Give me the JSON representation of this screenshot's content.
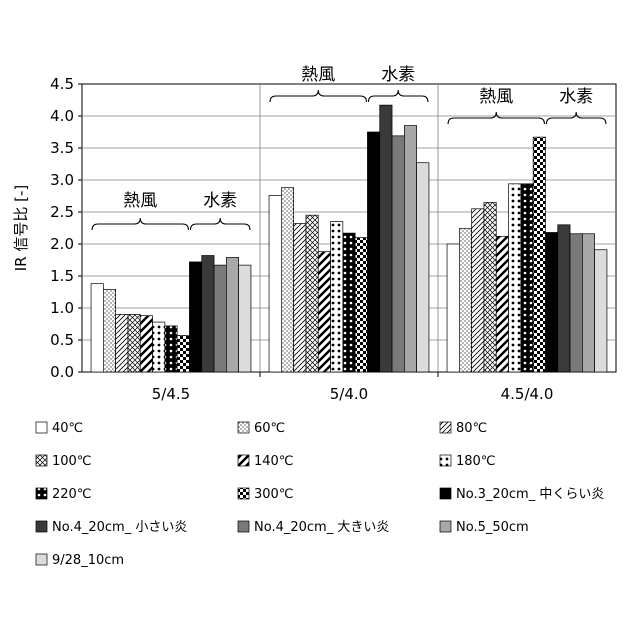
{
  "chart_data": {
    "type": "bar",
    "ylabel": "IR 信号比 [-]",
    "ylim": [
      0,
      4.5
    ],
    "yticks": [
      "0.0",
      "0.5",
      "1.0",
      "1.5",
      "2.0",
      "2.5",
      "3.0",
      "3.5",
      "4.0",
      "4.5"
    ],
    "grid": true,
    "legend_position": "bottom",
    "categories": [
      "5/4.5",
      "5/4.0",
      "4.5/4.0"
    ],
    "series": [
      {
        "name": "40℃",
        "values": [
          1.38,
          2.76,
          2.0
        ],
        "pattern": "white"
      },
      {
        "name": "60℃",
        "values": [
          1.29,
          2.88,
          2.24
        ],
        "pattern": "dots-fine"
      },
      {
        "name": "80℃",
        "values": [
          0.9,
          2.32,
          2.55
        ],
        "pattern": "diag"
      },
      {
        "name": "100℃",
        "values": [
          0.9,
          2.45,
          2.65
        ],
        "pattern": "cross"
      },
      {
        "name": "140℃",
        "values": [
          0.88,
          1.88,
          2.12
        ],
        "pattern": "diag-bold"
      },
      {
        "name": "180℃",
        "values": [
          0.78,
          2.35,
          2.94
        ],
        "pattern": "dots-big"
      },
      {
        "name": "220℃",
        "values": [
          0.72,
          2.17,
          2.94
        ],
        "pattern": "dots-black"
      },
      {
        "name": "300℃",
        "values": [
          0.57,
          2.1,
          3.67
        ],
        "pattern": "checker"
      },
      {
        "name": "No.3_20cm_ 中くらい炎",
        "values": [
          1.72,
          3.75,
          2.18
        ],
        "color": "#000000"
      },
      {
        "name": "No.4_20cm_ 小さい炎",
        "values": [
          1.82,
          4.17,
          2.3
        ],
        "color": "#3a3a3a"
      },
      {
        "name": "No.4_20cm_ 大きい炎",
        "values": [
          1.67,
          3.69,
          2.16
        ],
        "color": "#7a7a7a"
      },
      {
        "name": "No.5_50cm",
        "values": [
          1.79,
          3.85,
          2.16
        ],
        "color": "#a8a8a8"
      },
      {
        "name": "9/28_10cm",
        "values": [
          1.67,
          3.27,
          1.91
        ],
        "color": "#dcdcdc"
      }
    ],
    "annotations": [
      {
        "group": 0,
        "hot_air": "熱風",
        "hydrogen": "水素"
      },
      {
        "group": 1,
        "hot_air": "熱風",
        "hydrogen": "水素"
      },
      {
        "group": 2,
        "hot_air": "熱風",
        "hydrogen": "水素"
      }
    ]
  }
}
